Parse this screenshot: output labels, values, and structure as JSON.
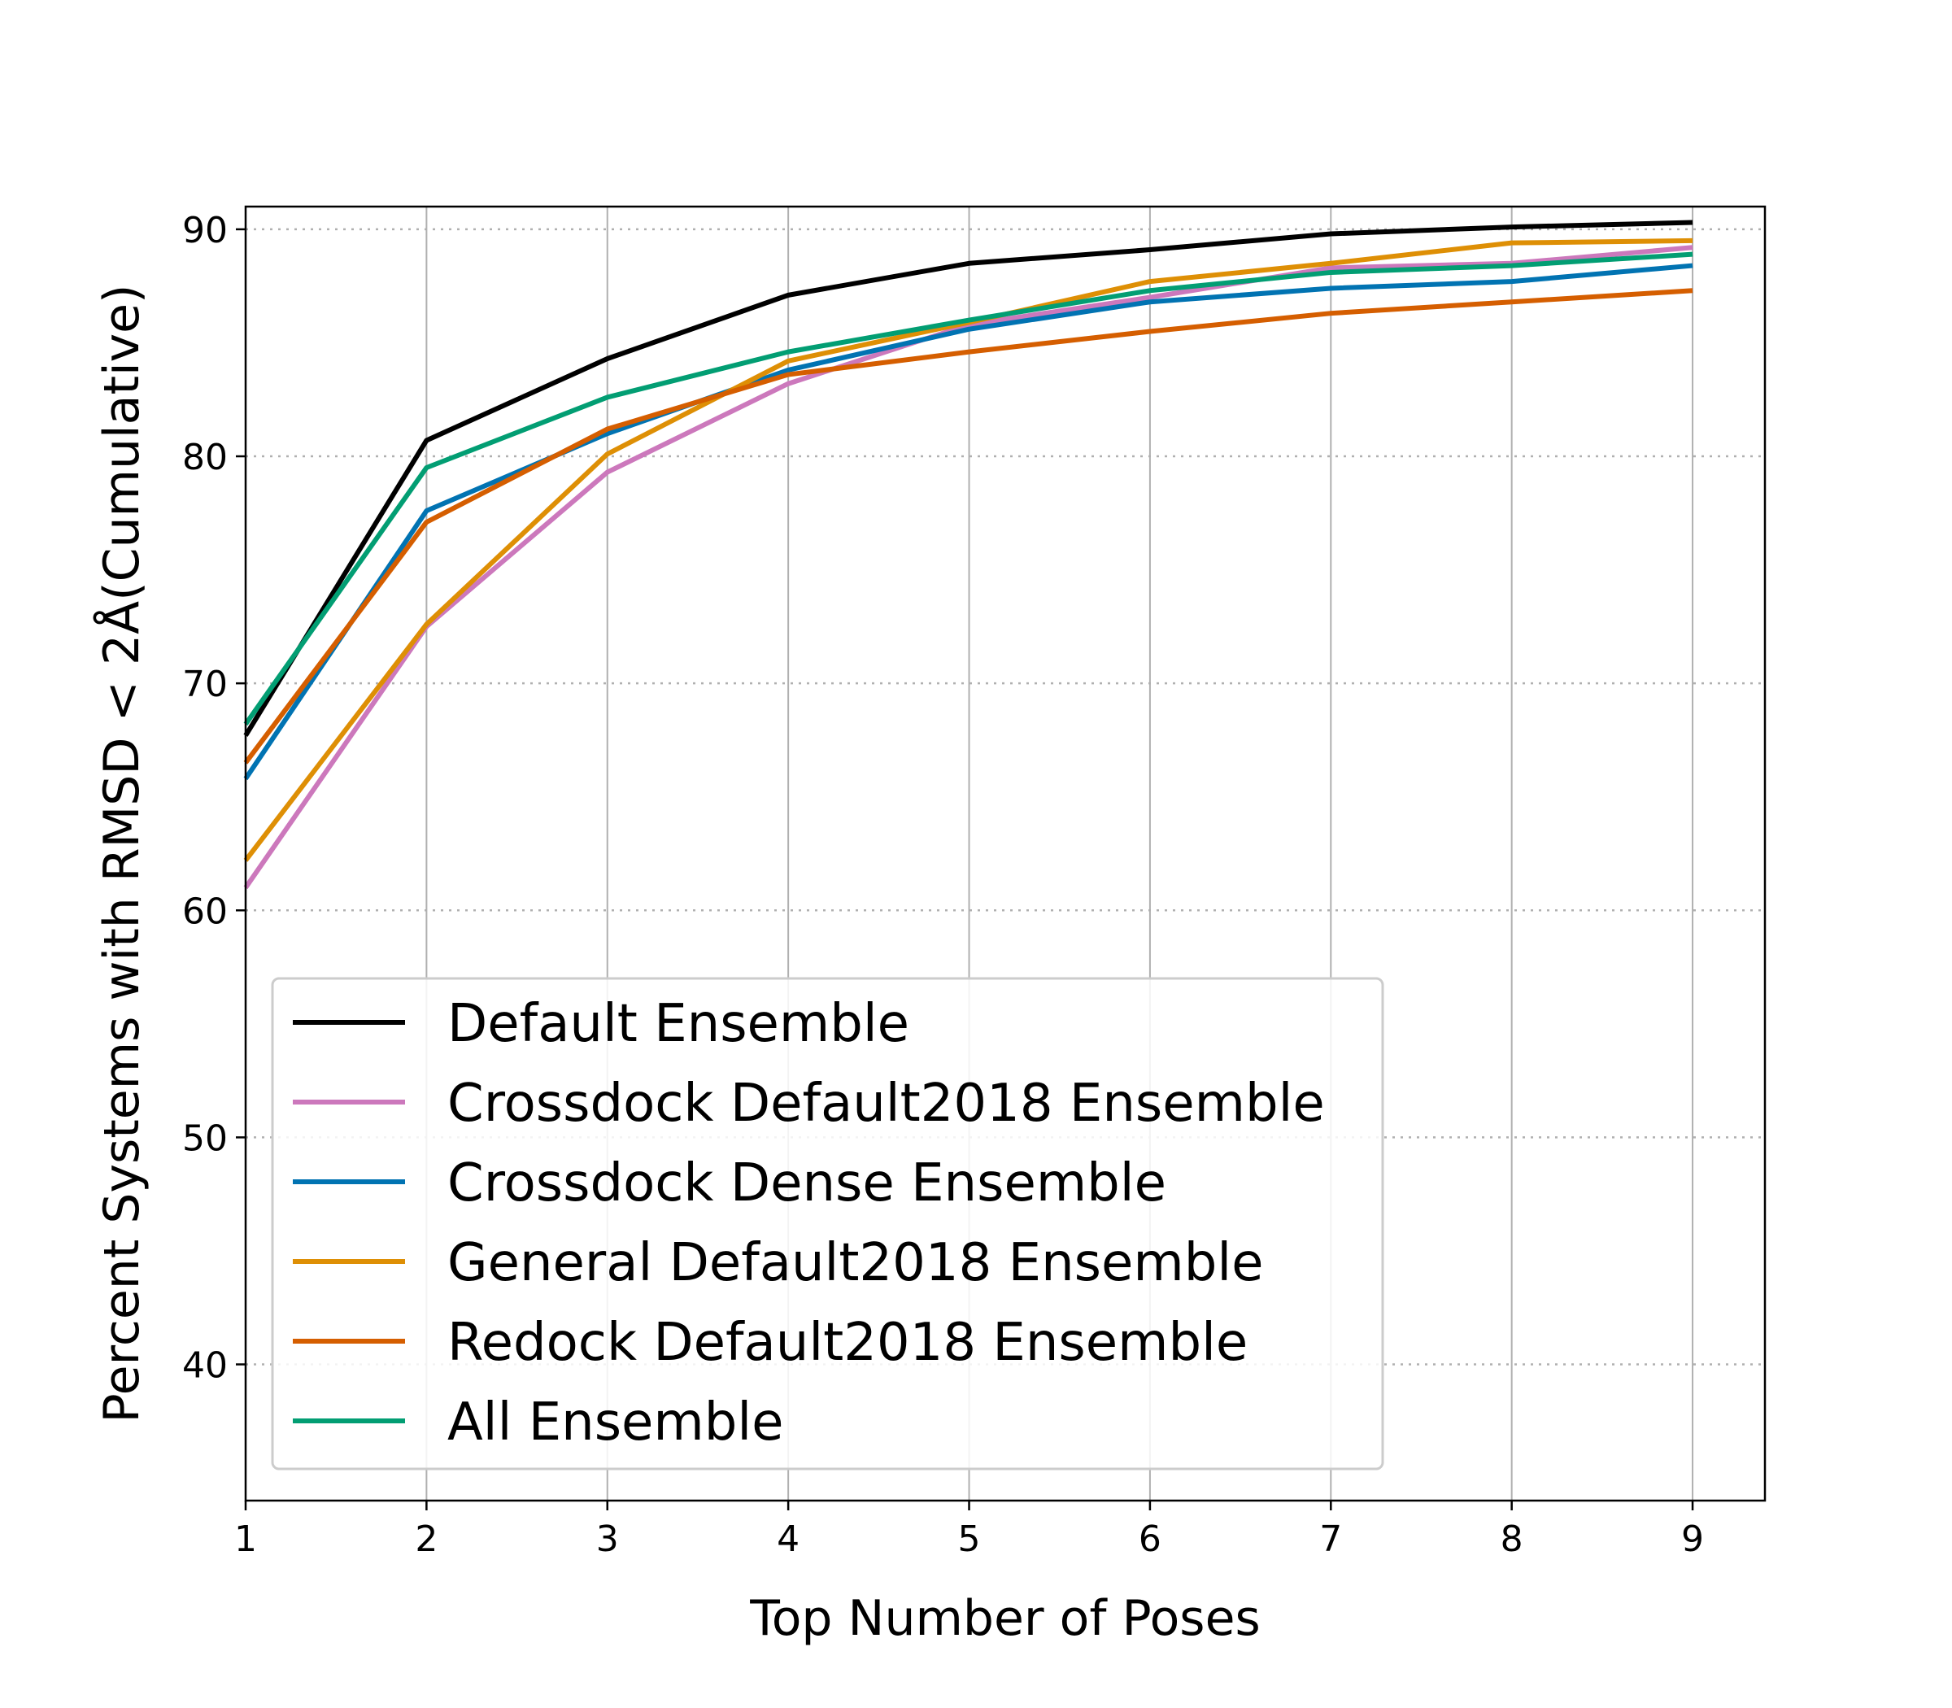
{
  "chart_data": {
    "type": "line",
    "title": "",
    "xlabel": "Top Number of Poses",
    "ylabel": "Percent Systems with RMSD < 2Å(Cumulative)",
    "x": [
      1,
      2,
      3,
      4,
      5,
      6,
      7,
      8,
      9
    ],
    "xticks": [
      "1",
      "2",
      "3",
      "4",
      "5",
      "6",
      "7",
      "8",
      "9"
    ],
    "yticks": [
      "40",
      "50",
      "60",
      "70",
      "80",
      "90"
    ],
    "xlim": [
      1,
      9.4
    ],
    "ylim": [
      34,
      91
    ],
    "grid": {
      "x": "solid",
      "y": "dotted"
    },
    "legend_position": "lower-left",
    "series": [
      {
        "name": "Default Ensemble",
        "color": "#000000",
        "values": [
          67.7,
          80.7,
          84.3,
          87.1,
          88.5,
          89.1,
          89.8,
          90.1,
          90.3
        ]
      },
      {
        "name": "Crossdock Default2018 Ensemble",
        "color": "#CC78BC",
        "values": [
          61.0,
          72.5,
          79.3,
          83.2,
          85.8,
          87.0,
          88.3,
          88.5,
          89.2
        ]
      },
      {
        "name": "Crossdock Dense Ensemble",
        "color": "#0173B2",
        "values": [
          65.8,
          77.6,
          81.0,
          83.8,
          85.6,
          86.8,
          87.4,
          87.7,
          88.4
        ]
      },
      {
        "name": "General Default2018 Ensemble",
        "color": "#DE8F05",
        "values": [
          62.2,
          72.6,
          80.1,
          84.2,
          85.9,
          87.7,
          88.5,
          89.4,
          89.5
        ]
      },
      {
        "name": "Redock Default2018 Ensemble",
        "color": "#D55E00",
        "values": [
          66.5,
          77.1,
          81.2,
          83.6,
          84.6,
          85.5,
          86.3,
          86.8,
          87.3
        ]
      },
      {
        "name": "All Ensemble",
        "color": "#029E73",
        "values": [
          68.2,
          79.5,
          82.6,
          84.6,
          86.0,
          87.3,
          88.1,
          88.4,
          88.9
        ]
      }
    ]
  }
}
